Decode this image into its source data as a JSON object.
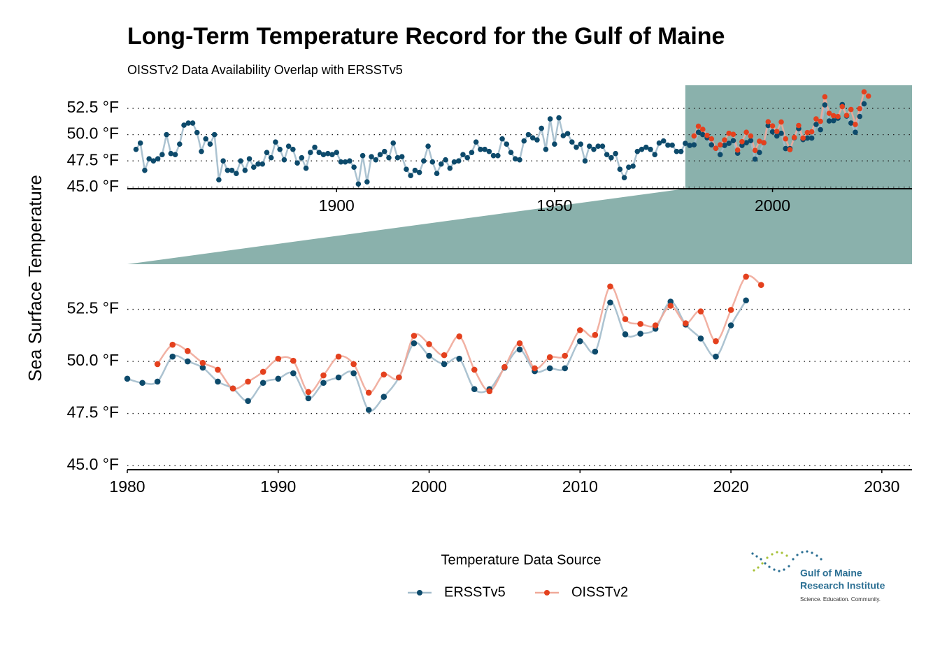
{
  "chart_data": {
    "type": "line",
    "title": "Long-Term Temperature Record for the Gulf of Maine",
    "subtitle": "OISSTv2 Data Availability Overlap with ERSSTv5",
    "y_label": "Sea Surface Temperature",
    "legend_title": "Temperature Data Source",
    "grid": true,
    "highlight_color": "#8ab1ac",
    "series": [
      {
        "name": "ERSSTv5",
        "color": "#0d4a6b",
        "line_color": "#a3bdcc",
        "x": [
          1854,
          1855,
          1856,
          1857,
          1858,
          1859,
          1860,
          1861,
          1862,
          1863,
          1864,
          1865,
          1866,
          1867,
          1868,
          1869,
          1870,
          1871,
          1872,
          1873,
          1874,
          1875,
          1876,
          1877,
          1878,
          1879,
          1880,
          1881,
          1882,
          1883,
          1884,
          1885,
          1886,
          1887,
          1888,
          1889,
          1890,
          1891,
          1892,
          1893,
          1894,
          1895,
          1896,
          1897,
          1898,
          1899,
          1900,
          1901,
          1902,
          1903,
          1904,
          1905,
          1906,
          1907,
          1908,
          1909,
          1910,
          1911,
          1912,
          1913,
          1914,
          1915,
          1916,
          1917,
          1918,
          1919,
          1920,
          1921,
          1922,
          1923,
          1924,
          1925,
          1926,
          1927,
          1928,
          1929,
          1930,
          1931,
          1932,
          1933,
          1934,
          1935,
          1936,
          1937,
          1938,
          1939,
          1940,
          1941,
          1942,
          1943,
          1944,
          1945,
          1946,
          1947,
          1948,
          1949,
          1950,
          1951,
          1952,
          1953,
          1954,
          1955,
          1956,
          1957,
          1958,
          1959,
          1960,
          1961,
          1962,
          1963,
          1964,
          1965,
          1966,
          1967,
          1968,
          1969,
          1970,
          1971,
          1972,
          1973,
          1974,
          1975,
          1976,
          1977,
          1978,
          1979,
          1980,
          1981,
          1982,
          1983,
          1984,
          1985,
          1986,
          1987,
          1988,
          1989,
          1990,
          1991,
          1992,
          1993,
          1994,
          1995,
          1996,
          1997,
          1998,
          1999,
          2000,
          2001,
          2002,
          2003,
          2004,
          2005,
          2006,
          2007,
          2008,
          2009,
          2010,
          2011,
          2012,
          2013,
          2014,
          2015,
          2016,
          2017,
          2018,
          2019,
          2020,
          2021
        ],
        "values": [
          48.6,
          49.2,
          46.6,
          47.7,
          47.5,
          47.7,
          48.1,
          50.0,
          48.2,
          48.1,
          49.1,
          50.9,
          51.1,
          51.1,
          50.2,
          48.4,
          49.6,
          49.1,
          50.0,
          45.7,
          47.5,
          46.6,
          46.6,
          46.3,
          47.5,
          46.6,
          47.7,
          46.9,
          47.2,
          47.2,
          48.3,
          47.8,
          49.3,
          48.6,
          47.6,
          48.9,
          48.6,
          47.3,
          47.8,
          46.8,
          48.3,
          48.8,
          48.3,
          48.1,
          48.2,
          48.1,
          48.3,
          47.4,
          47.4,
          47.5,
          46.9,
          45.3,
          48.0,
          45.5,
          47.9,
          47.6,
          48.1,
          48.4,
          47.8,
          49.2,
          47.8,
          47.9,
          46.7,
          46.1,
          46.6,
          46.4,
          47.5,
          48.9,
          47.4,
          46.3,
          47.2,
          47.6,
          46.8,
          47.4,
          47.5,
          48.1,
          47.8,
          48.3,
          49.3,
          48.6,
          48.6,
          48.4,
          48.0,
          48.0,
          49.6,
          49.1,
          48.3,
          47.7,
          47.6,
          49.4,
          50.0,
          49.7,
          49.5,
          50.6,
          48.6,
          51.5,
          49.1,
          51.6,
          49.9,
          50.1,
          49.3,
          48.8,
          49.1,
          47.5,
          48.9,
          48.6,
          48.9,
          48.9,
          48.1,
          47.8,
          48.2,
          46.7,
          45.9,
          46.9,
          47.0,
          48.4,
          48.6,
          48.8,
          48.6,
          48.1,
          49.2,
          49.4,
          49.0,
          49.0,
          48.4,
          48.4,
          49.17,
          48.97,
          49.03,
          50.23,
          50.0,
          49.7,
          49.03,
          48.7,
          48.1,
          48.97,
          49.17,
          49.43,
          48.23,
          48.97,
          49.23,
          49.43,
          47.67,
          48.3,
          49.23,
          50.87,
          50.27,
          49.87,
          50.13,
          48.67,
          48.67,
          49.7,
          50.57,
          49.53,
          49.67,
          49.67,
          50.97,
          50.47,
          52.83,
          51.3,
          51.33,
          51.57,
          52.87,
          51.77,
          51.1,
          50.23,
          51.73,
          52.93
        ]
      },
      {
        "name": "OISSTv2",
        "color": "#e4411e",
        "line_color": "#f0a999",
        "x": [
          1982,
          1983,
          1984,
          1985,
          1986,
          1987,
          1988,
          1989,
          1990,
          1991,
          1992,
          1993,
          1994,
          1995,
          1996,
          1997,
          1998,
          1999,
          2000,
          2001,
          2002,
          2003,
          2004,
          2005,
          2006,
          2007,
          2008,
          2009,
          2010,
          2011,
          2012,
          2013,
          2014,
          2015,
          2016,
          2017,
          2018,
          2019,
          2020,
          2021,
          2022
        ],
        "values": [
          49.87,
          50.8,
          50.5,
          49.93,
          49.6,
          48.7,
          49.03,
          49.5,
          50.13,
          50.03,
          48.53,
          49.33,
          50.23,
          49.87,
          48.5,
          49.37,
          49.23,
          51.23,
          50.83,
          50.3,
          51.2,
          49.6,
          48.57,
          49.73,
          50.87,
          49.67,
          50.2,
          50.27,
          51.5,
          51.27,
          53.6,
          52.03,
          51.8,
          51.73,
          52.67,
          51.83,
          52.4,
          50.97,
          52.47,
          54.07,
          53.67
        ]
      }
    ],
    "panels": [
      {
        "xlim": [
          1852,
          2032
        ],
        "xticks": [
          1900,
          1950,
          2000
        ],
        "ylim": [
          44.85,
          54.7
        ],
        "yticks": [
          {
            "value": 45,
            "label": "45.0 °F"
          },
          {
            "value": 47.5,
            "label": "47.5 °F"
          },
          {
            "value": 50,
            "label": "50.0 °F"
          },
          {
            "value": 52.5,
            "label": "52.5 °F"
          }
        ]
      },
      {
        "xlim": [
          1980,
          2032
        ],
        "xticks": [
          1980,
          1990,
          2000,
          2010,
          2020,
          2030
        ],
        "ylim": [
          44.8,
          54.6
        ],
        "yticks": [
          {
            "value": 45,
            "label": "45.0 °F"
          },
          {
            "value": 47.5,
            "label": "47.5 °F"
          },
          {
            "value": 50,
            "label": "50.0 °F"
          },
          {
            "value": 52.5,
            "label": "52.5 °F"
          }
        ]
      }
    ]
  },
  "logo": {
    "line1": "Gulf of Maine",
    "line2": "Research Institute",
    "tagline": "Science. Education. Community."
  }
}
